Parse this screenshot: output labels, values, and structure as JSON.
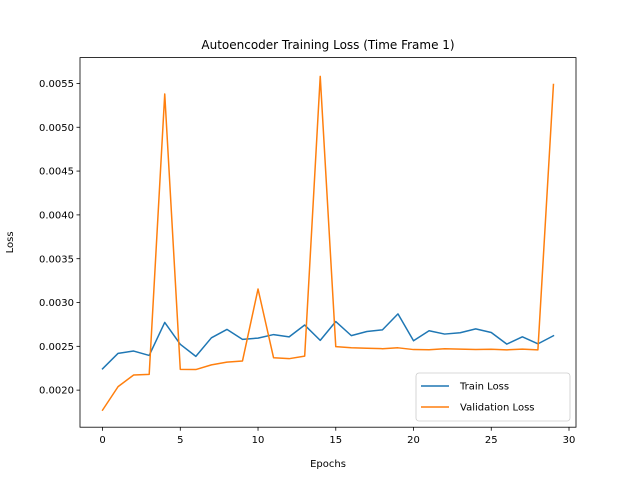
{
  "chart_data": {
    "type": "line",
    "title": "Autoencoder Training Loss (Time Frame 1)",
    "xlabel": "Epochs",
    "ylabel": "Loss",
    "xlim": [
      -1.45,
      30.45
    ],
    "ylim": [
      0.001577,
      0.005795
    ],
    "xticks": [
      0,
      5,
      10,
      15,
      20,
      25,
      30
    ],
    "xtick_labels": [
      "0",
      "5",
      "10",
      "15",
      "20",
      "25",
      "30"
    ],
    "yticks": [
      0.002,
      0.0025,
      0.003,
      0.0035,
      0.004,
      0.0045,
      0.005,
      0.0055
    ],
    "ytick_labels": [
      "0.0020",
      "0.0025",
      "0.0030",
      "0.0035",
      "0.0040",
      "0.0045",
      "0.0050",
      "0.0055"
    ],
    "grid": false,
    "legend_position": "lower-right",
    "x": [
      0,
      1,
      2,
      3,
      4,
      5,
      6,
      7,
      8,
      9,
      10,
      11,
      12,
      13,
      14,
      15,
      16,
      17,
      18,
      19,
      20,
      21,
      22,
      23,
      24,
      25,
      26,
      27,
      28,
      29
    ],
    "series": [
      {
        "name": "Train Loss",
        "color": "#1f77b4",
        "values": [
          0.002243,
          0.00242,
          0.002446,
          0.002396,
          0.002773,
          0.002523,
          0.002385,
          0.002597,
          0.002693,
          0.002579,
          0.002594,
          0.002634,
          0.002608,
          0.002743,
          0.002568,
          0.002783,
          0.002622,
          0.002669,
          0.002688,
          0.00287,
          0.002563,
          0.002678,
          0.00264,
          0.002655,
          0.002699,
          0.002658,
          0.002525,
          0.002608,
          0.002528,
          0.002621
        ]
      },
      {
        "name": "Validation Loss",
        "color": "#ff7f0e",
        "values": [
          0.001772,
          0.00204,
          0.002173,
          0.00218,
          0.005379,
          0.002237,
          0.002235,
          0.002288,
          0.00232,
          0.002333,
          0.003154,
          0.002369,
          0.002359,
          0.002388,
          0.005581,
          0.002496,
          0.002484,
          0.002478,
          0.002473,
          0.002483,
          0.002463,
          0.002461,
          0.002472,
          0.002468,
          0.002464,
          0.002467,
          0.00246,
          0.002468,
          0.00246,
          0.005488
        ]
      }
    ]
  }
}
